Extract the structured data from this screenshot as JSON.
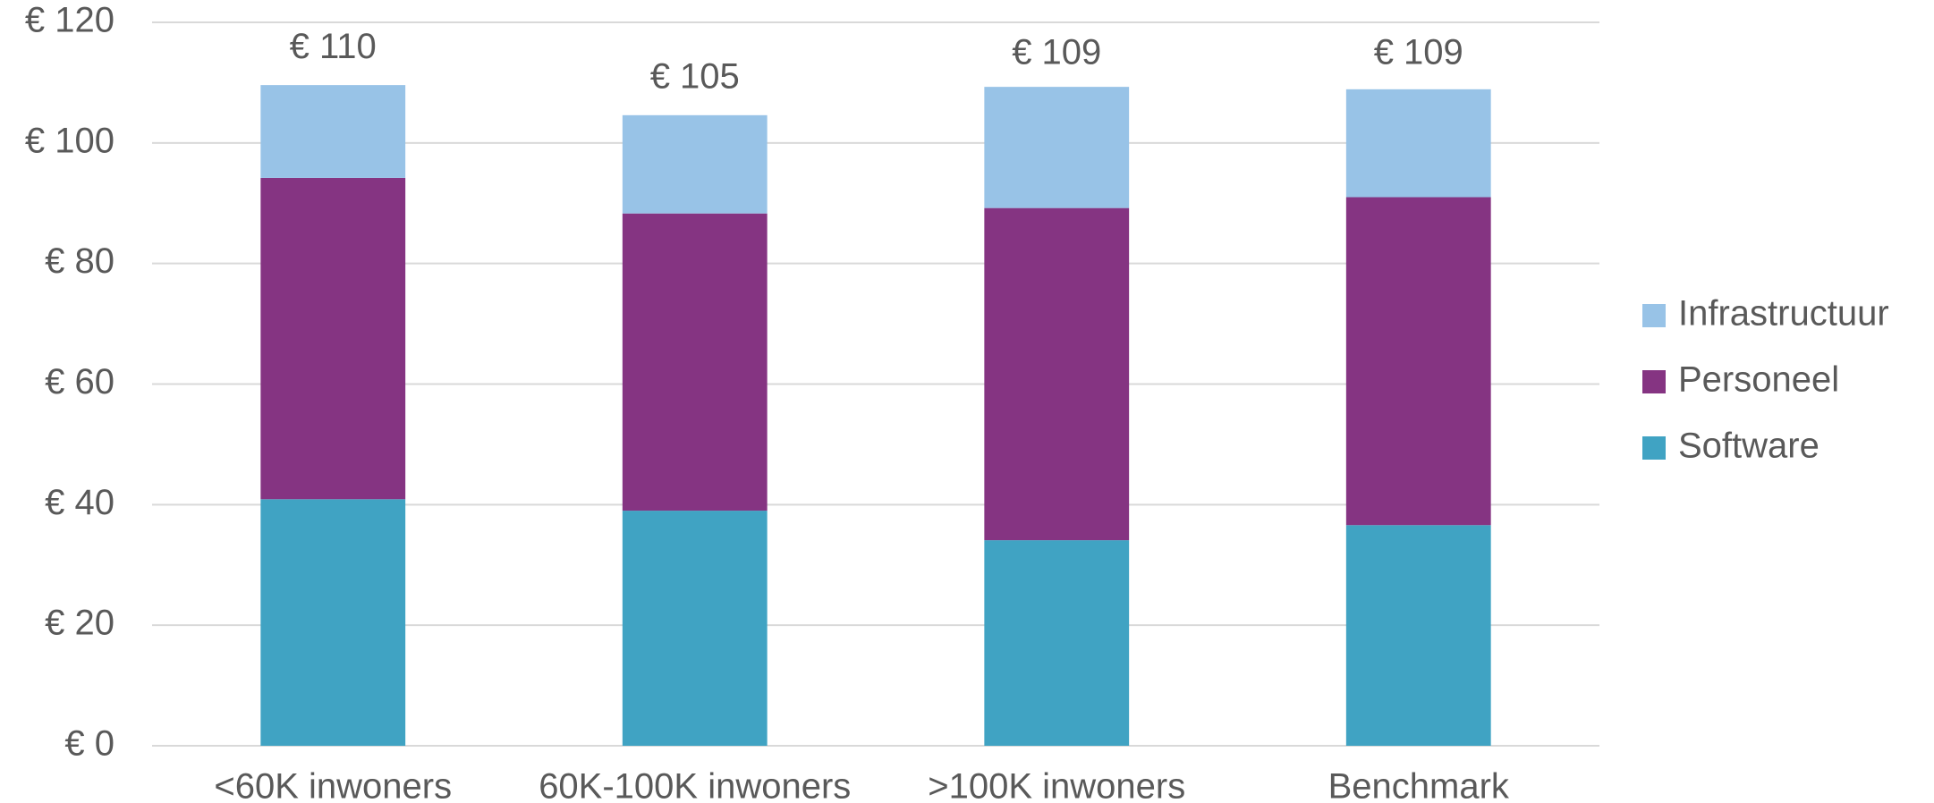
{
  "chart_data": {
    "type": "stacked_bar",
    "categories": [
      "<60K inwoners",
      "60K-100K inwoners",
      ">100K inwoners",
      "Benchmark"
    ],
    "series": [
      {
        "name": "Software",
        "color": "#40a3c3",
        "values": [
          40.9,
          39.0,
          34.1,
          36.6
        ]
      },
      {
        "name": "Personeel",
        "color": "#853482",
        "values": [
          53.3,
          49.3,
          55.1,
          54.4
        ]
      },
      {
        "name": "Infrastructuur",
        "color": "#98c3e7",
        "values": [
          15.4,
          16.3,
          20.1,
          17.9
        ]
      }
    ],
    "totals": {
      "values": [
        110,
        105,
        109,
        109
      ],
      "value_labels": [
        "€ 110",
        "€ 105",
        "€ 109",
        "€ 109"
      ]
    },
    "ylim": [
      0,
      120
    ],
    "yticks": [
      {
        "value": 0,
        "label": "€ 0"
      },
      {
        "value": 20,
        "label": "€ 20"
      },
      {
        "value": 40,
        "label": "€ 40"
      },
      {
        "value": 60,
        "label": "€ 60"
      },
      {
        "value": 80,
        "label": "€ 80"
      },
      {
        "value": 100,
        "label": "€ 100"
      },
      {
        "value": 120,
        "label": "€ 120"
      }
    ],
    "grid": true,
    "legend": "right"
  }
}
